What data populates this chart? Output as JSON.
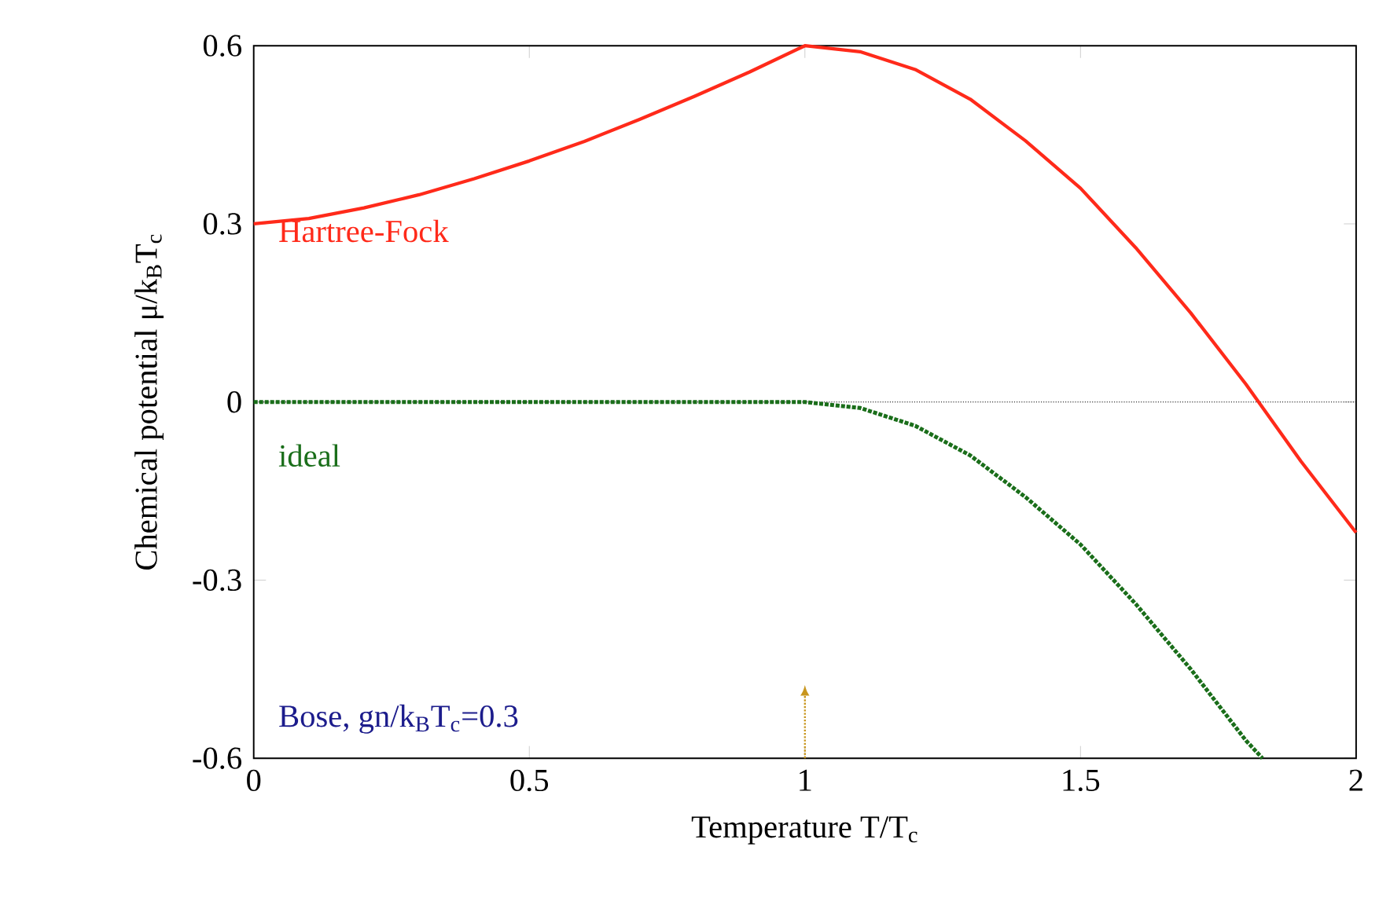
{
  "chart_data": {
    "type": "line",
    "xlabel": "Temperature T/T$_{c}$",
    "ylabel": "Chemical potential μ/k$_{B}$T$_{c}$",
    "xlim": [
      0,
      2
    ],
    "ylim": [
      -0.6,
      0.6
    ],
    "xticks": [
      0,
      0.5,
      1,
      1.5,
      2
    ],
    "yticks": [
      -0.6,
      -0.3,
      0,
      0.3,
      0.6
    ],
    "grid": false,
    "legend": false,
    "series": [
      {
        "name": "Hartree-Fock",
        "color": "#ff2a1a",
        "line_style": "solid",
        "x": [
          0,
          0.1,
          0.2,
          0.3,
          0.4,
          0.5,
          0.6,
          0.7,
          0.8,
          0.9,
          1.0,
          1.1,
          1.2,
          1.3,
          1.4,
          1.5,
          1.6,
          1.7,
          1.8,
          1.9,
          2.0
        ],
        "values": [
          0.3,
          0.309,
          0.327,
          0.349,
          0.376,
          0.406,
          0.439,
          0.476,
          0.515,
          0.556,
          0.6,
          0.59,
          0.56,
          0.51,
          0.44,
          0.36,
          0.26,
          0.15,
          0.03,
          -0.1,
          -0.22
        ]
      },
      {
        "name": "ideal",
        "color": "#1a6e1a",
        "line_style": "dotted",
        "x": [
          0,
          0.2,
          0.4,
          0.6,
          0.8,
          1.0,
          1.1,
          1.2,
          1.3,
          1.4,
          1.5,
          1.6,
          1.7,
          1.8,
          1.83
        ],
        "values": [
          0,
          0,
          0,
          0,
          0,
          0,
          -0.01,
          -0.04,
          -0.09,
          -0.16,
          -0.24,
          -0.34,
          -0.45,
          -0.57,
          -0.6
        ]
      }
    ],
    "ref_lines": [
      {
        "axis": "y",
        "value": 0,
        "color": "#000000",
        "line_style": "dotted"
      },
      {
        "axis": "x",
        "value": 1,
        "color": "#c8961e",
        "line_style": "dotted"
      }
    ],
    "annotations": [
      "Bose, gn/k$_{B}$T$_{c}$=0.3"
    ]
  }
}
